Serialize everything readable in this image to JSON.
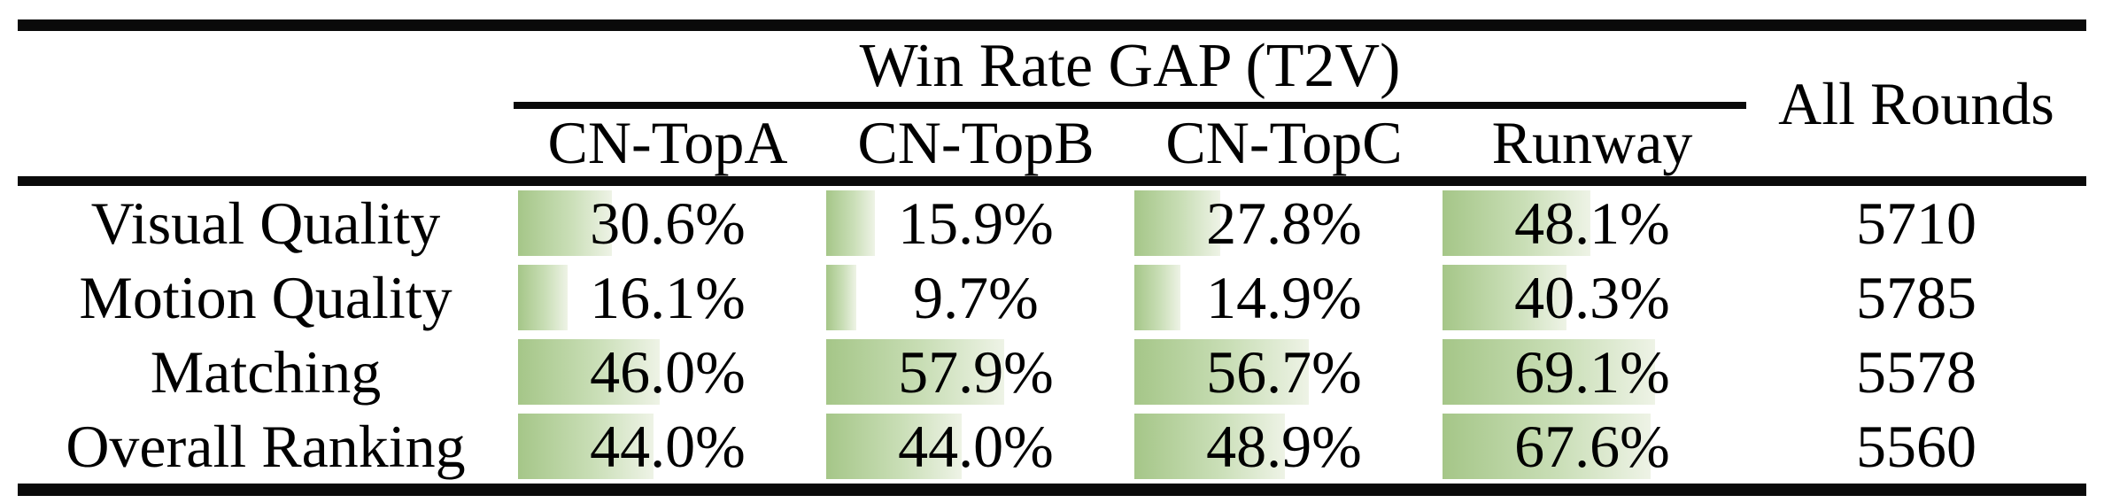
{
  "table": {
    "title": "Win Rate GAP (T2V)",
    "all_rounds_header": "All Rounds",
    "columns": [
      "CN-TopA",
      "CN-TopB",
      "CN-TopC",
      "Runway"
    ],
    "rows": [
      {
        "label": "Visual Quality",
        "cells": [
          {
            "text": "30.6%",
            "pct": 30.6
          },
          {
            "text": "15.9%",
            "pct": 15.9
          },
          {
            "text": "27.8%",
            "pct": 27.8
          },
          {
            "text": "48.1%",
            "pct": 48.1
          }
        ],
        "all_rounds": "5710"
      },
      {
        "label": "Motion Quality",
        "cells": [
          {
            "text": "16.1%",
            "pct": 16.1
          },
          {
            "text": "9.7%",
            "pct": 9.7
          },
          {
            "text": "14.9%",
            "pct": 14.9
          },
          {
            "text": "40.3%",
            "pct": 40.3
          }
        ],
        "all_rounds": "5785"
      },
      {
        "label": "Matching",
        "cells": [
          {
            "text": "46.0%",
            "pct": 46.0
          },
          {
            "text": "57.9%",
            "pct": 57.9
          },
          {
            "text": "56.7%",
            "pct": 56.7
          },
          {
            "text": "69.1%",
            "pct": 69.1
          }
        ],
        "all_rounds": "5578"
      },
      {
        "label": "Overall Ranking",
        "cells": [
          {
            "text": "44.0%",
            "pct": 44.0
          },
          {
            "text": "44.0%",
            "pct": 44.0
          },
          {
            "text": "48.9%",
            "pct": 48.9
          },
          {
            "text": "67.6%",
            "pct": 67.6
          }
        ],
        "all_rounds": "5560"
      }
    ],
    "colors": {
      "bar_green": "#a5c688",
      "bar_mid": "#c9deb6",
      "bar_fade": "#eef3e6",
      "rule_black": "#0a0a0a"
    }
  },
  "chart_data": {
    "type": "table",
    "title": "Win Rate GAP (T2V)",
    "categories": [
      "Visual Quality",
      "Motion Quality",
      "Matching",
      "Overall Ranking"
    ],
    "series": [
      {
        "name": "CN-TopA",
        "values": [
          30.6,
          16.1,
          46.0,
          44.0
        ]
      },
      {
        "name": "CN-TopB",
        "values": [
          15.9,
          9.7,
          57.9,
          44.0
        ]
      },
      {
        "name": "CN-TopC",
        "values": [
          27.8,
          14.9,
          56.7,
          48.9
        ]
      },
      {
        "name": "Runway",
        "values": [
          48.1,
          40.3,
          69.1,
          67.6
        ]
      }
    ],
    "extra_column": {
      "name": "All Rounds",
      "values": [
        5710,
        5785,
        5578,
        5560
      ]
    },
    "value_unit": "%",
    "layout_hint": "in-cell horizontal bars, left-anchored, width proportional to percent of cell"
  }
}
